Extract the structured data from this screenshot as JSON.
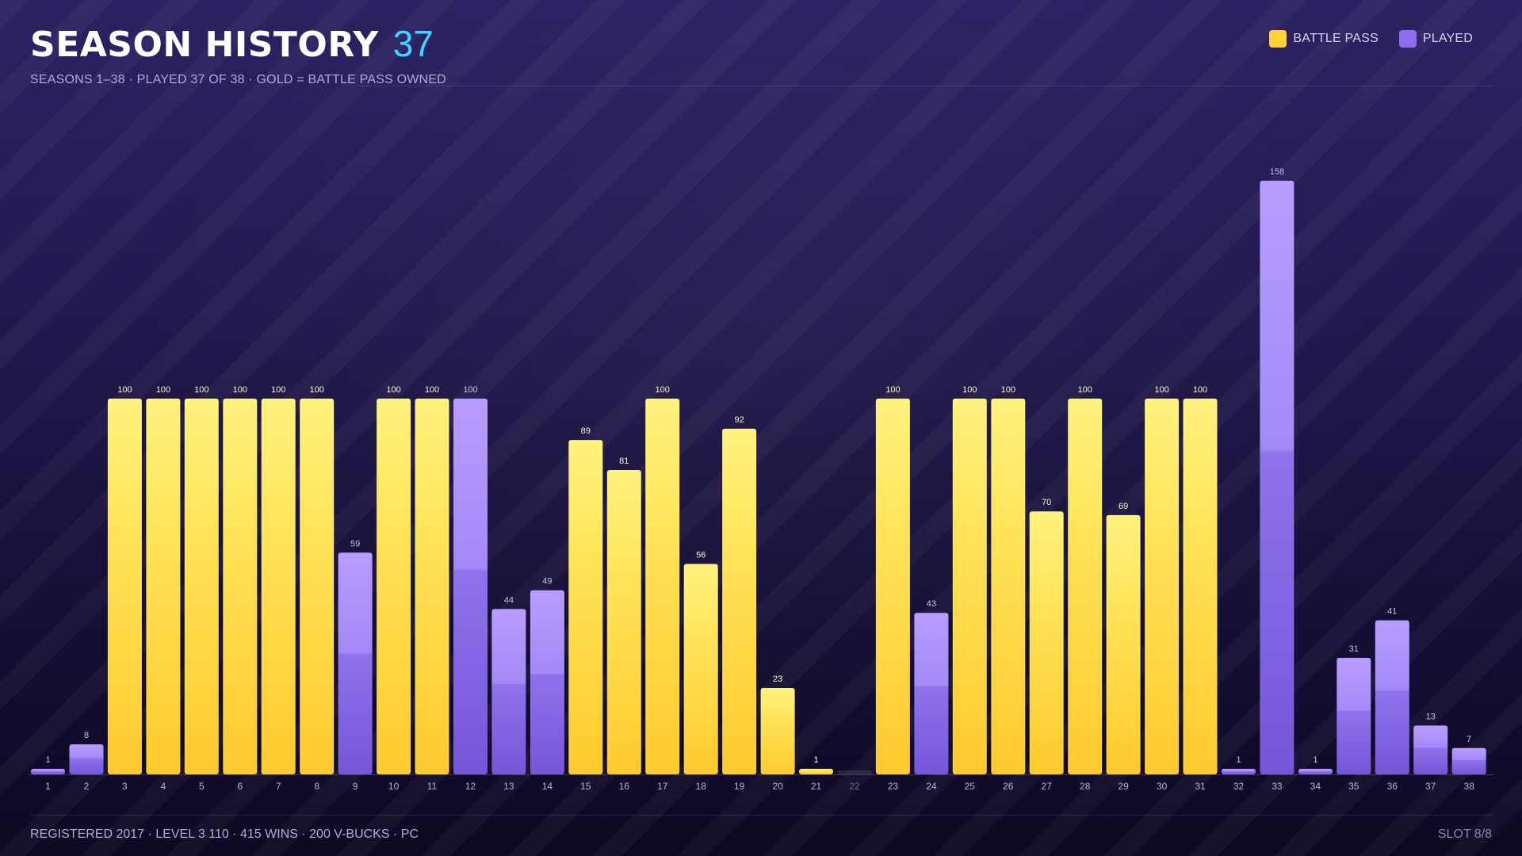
{
  "header": {
    "title": "SEASON HISTORY",
    "count": "37",
    "subtitle": "SEASONS 1–38 · PLAYED 37 OF 38 · GOLD = BATTLE PASS OWNED"
  },
  "legend": [
    {
      "label": "BATTLE PASS",
      "color": "#ffd23a"
    },
    {
      "label": "PLAYED",
      "color": "#8d6ef0"
    }
  ],
  "chart_data": {
    "type": "bar",
    "title": "",
    "xlabel": "",
    "ylabel": "",
    "ylim": [
      0,
      158
    ],
    "grid": false,
    "legend_position": "top-right",
    "categories": [
      "1",
      "2",
      "3",
      "4",
      "5",
      "6",
      "7",
      "8",
      "9",
      "10",
      "11",
      "12",
      "13",
      "14",
      "15",
      "16",
      "17",
      "18",
      "19",
      "20",
      "21",
      "22",
      "23",
      "24",
      "25",
      "26",
      "27",
      "28",
      "29",
      "30",
      "31",
      "32",
      "33",
      "34",
      "35",
      "36",
      "37",
      "38"
    ],
    "values": [
      1,
      8,
      100,
      100,
      100,
      100,
      100,
      100,
      59,
      100,
      100,
      100,
      44,
      49,
      89,
      81,
      100,
      56,
      92,
      23,
      1,
      0,
      100,
      43,
      100,
      100,
      70,
      100,
      69,
      100,
      100,
      1,
      158,
      1,
      31,
      41,
      13,
      7
    ],
    "battle_pass": [
      false,
      false,
      true,
      true,
      true,
      true,
      true,
      true,
      false,
      true,
      true,
      false,
      false,
      false,
      true,
      true,
      true,
      true,
      true,
      true,
      true,
      false,
      true,
      false,
      true,
      true,
      true,
      true,
      true,
      true,
      true,
      false,
      false,
      false,
      false,
      false,
      false,
      false
    ],
    "data_labels": [
      "1",
      "8",
      "100",
      "100",
      "100",
      "100",
      "100",
      "100",
      "59",
      "100",
      "100",
      "100",
      "44",
      "49",
      "89",
      "81",
      "100",
      "56",
      "92",
      "23",
      "1",
      "",
      "100",
      "43",
      "100",
      "100",
      "70",
      "100",
      "69",
      "100",
      "100",
      "1",
      "158",
      "1",
      "31",
      "41",
      "13",
      "7"
    ]
  },
  "footer": {
    "info": "REGISTERED 2017 · LEVEL 3 110 · 415 WINS · 200 V-BUCKS · PC",
    "slot": "SLOT 8/8"
  }
}
